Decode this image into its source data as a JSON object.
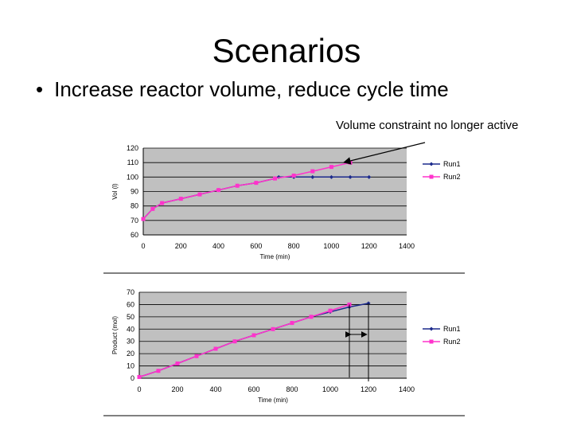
{
  "slide": {
    "title": "Scenarios",
    "bullet": "Increase reactor volume, reduce cycle time",
    "annotation": "Volume constraint no longer active"
  },
  "colors": {
    "run1": "#1c2a8c",
    "run2": "#ff33cc",
    "plot_bg": "#c0c0c0"
  },
  "chart_data": [
    {
      "type": "line",
      "title": "",
      "xlabel": "Time (min)",
      "ylabel": "Vol (l)",
      "xlim": [
        0,
        1400
      ],
      "ylim": [
        60,
        120
      ],
      "xticks": [
        0,
        200,
        400,
        600,
        800,
        1000,
        1200,
        1400
      ],
      "yticks": [
        60,
        70,
        80,
        90,
        100,
        110,
        120
      ],
      "legend": "right",
      "series": [
        {
          "name": "Run1",
          "x": [
            0,
            50,
            100,
            200,
            300,
            400,
            500,
            600,
            700,
            720,
            800,
            900,
            1000,
            1100,
            1200
          ],
          "y": [
            71,
            78,
            82,
            85,
            88,
            91,
            94,
            96,
            99,
            100,
            100,
            100,
            100,
            100,
            100
          ]
        },
        {
          "name": "Run2",
          "x": [
            0,
            50,
            100,
            200,
            300,
            400,
            500,
            600,
            700,
            800,
            900,
            1000,
            1100
          ],
          "y": [
            71,
            78,
            82,
            85,
            88,
            91,
            94,
            96,
            99,
            101,
            104,
            107,
            110
          ]
        }
      ]
    },
    {
      "type": "line",
      "title": "",
      "xlabel": "Time (min)",
      "ylabel": "Product (mol)",
      "xlim": [
        0,
        1400
      ],
      "ylim": [
        0,
        70
      ],
      "xticks": [
        0,
        200,
        400,
        600,
        800,
        1000,
        1200,
        1400
      ],
      "yticks": [
        0,
        10,
        20,
        30,
        40,
        50,
        60,
        70
      ],
      "legend": "right",
      "series": [
        {
          "name": "Run1",
          "x": [
            0,
            100,
            200,
            300,
            400,
            500,
            600,
            700,
            800,
            900,
            1000,
            1100,
            1200
          ],
          "y": [
            1,
            6,
            12,
            18,
            24,
            30,
            35,
            40,
            45,
            50,
            54,
            58,
            61
          ]
        },
        {
          "name": "Run2",
          "x": [
            0,
            100,
            200,
            300,
            400,
            500,
            600,
            700,
            800,
            900,
            1000,
            1100
          ],
          "y": [
            1,
            6,
            12,
            18,
            24,
            30,
            35,
            40,
            45,
            50,
            55,
            60
          ]
        }
      ]
    }
  ]
}
